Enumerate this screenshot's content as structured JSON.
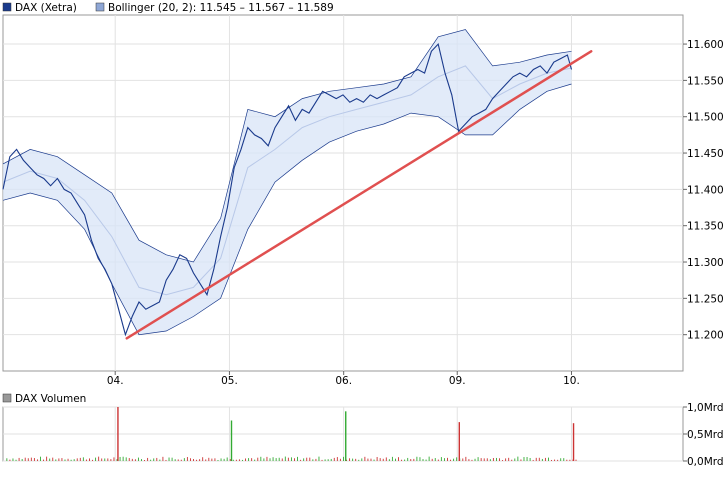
{
  "legend": {
    "main_label": "DAX (Xetra)",
    "main_color": "#1a3a8c",
    "bollinger_label": "Bollinger (20, 2): 11.545 – 11.567 – 11.589",
    "bollinger_color": "#8fa7d6",
    "volume_label": "DAX Volumen",
    "volume_color": "#999999"
  },
  "chart_data": [
    {
      "type": "line",
      "title": "",
      "x_tick_labels": [
        "04.",
        "05.",
        "06.",
        "09.",
        "10."
      ],
      "y_tick_labels": [
        "11.200",
        "11.250",
        "11.300",
        "11.350",
        "11.400",
        "11.450",
        "11.500",
        "11.550",
        "11.600"
      ],
      "y_ticks": [
        11200,
        11250,
        11300,
        11350,
        11400,
        11450,
        11500,
        11550,
        11600
      ],
      "ylim": [
        11150,
        11640
      ],
      "xlim": [
        0,
        100
      ],
      "x_day_positions": [
        16.5,
        33.3,
        50.1,
        66.8,
        83.6
      ],
      "grid": true,
      "series": [
        {
          "name": "DAX (Xetra)",
          "color": "#1a3a8c",
          "x": [
            0,
            1,
            2,
            3,
            4,
            5,
            6,
            7,
            8,
            9,
            10,
            11,
            12,
            13,
            14,
            15,
            16,
            17,
            18,
            19,
            20,
            21,
            22,
            23,
            24,
            25,
            26,
            27,
            28,
            29,
            30,
            31,
            32,
            33,
            34,
            35,
            36,
            37,
            38,
            39,
            40,
            41,
            42,
            43,
            44,
            45,
            46,
            47,
            48,
            49,
            50,
            51,
            52,
            53,
            54,
            55,
            56,
            57,
            58,
            59,
            60,
            61,
            62,
            63,
            64,
            65,
            66,
            67,
            68,
            69,
            70,
            71,
            72,
            73,
            74,
            75,
            76,
            77,
            78,
            79,
            80,
            81,
            82,
            83,
            83.6
          ],
          "values": [
            11400,
            11445,
            11455,
            11440,
            11430,
            11420,
            11415,
            11405,
            11415,
            11400,
            11395,
            11380,
            11365,
            11330,
            11305,
            11290,
            11270,
            11235,
            11200,
            11225,
            11245,
            11235,
            11240,
            11245,
            11275,
            11290,
            11310,
            11305,
            11285,
            11270,
            11255,
            11290,
            11335,
            11375,
            11430,
            11455,
            11485,
            11475,
            11470,
            11460,
            11485,
            11500,
            11515,
            11495,
            11510,
            11505,
            11520,
            11535,
            11530,
            11525,
            11530,
            11520,
            11525,
            11520,
            11530,
            11525,
            11530,
            11535,
            11540,
            11555,
            11560,
            11565,
            11560,
            11590,
            11600,
            11560,
            11530,
            11480,
            11490,
            11500,
            11505,
            11510,
            11525,
            11535,
            11545,
            11555,
            11560,
            11555,
            11565,
            11570,
            11560,
            11575,
            11580,
            11585,
            11565
          ]
        },
        {
          "name": "Bollinger (20, 2)",
          "color": "#8fa7d6",
          "x": [
            0,
            4,
            8,
            12,
            16,
            20,
            24,
            28,
            32,
            36,
            40,
            44,
            48,
            52,
            56,
            60,
            64,
            68,
            72,
            76,
            80,
            83.6
          ],
          "upper": [
            11435,
            11455,
            11445,
            11420,
            11395,
            11330,
            11310,
            11300,
            11360,
            11510,
            11500,
            11525,
            11535,
            11540,
            11545,
            11555,
            11610,
            11620,
            11570,
            11575,
            11585,
            11590
          ],
          "middle": [
            11410,
            11425,
            11415,
            11385,
            11335,
            11265,
            11255,
            11265,
            11305,
            11430,
            11455,
            11485,
            11500,
            11510,
            11520,
            11530,
            11555,
            11570,
            11525,
            11545,
            11560,
            11567
          ],
          "lower": [
            11385,
            11395,
            11385,
            11345,
            11270,
            11200,
            11205,
            11225,
            11250,
            11345,
            11410,
            11440,
            11465,
            11480,
            11490,
            11505,
            11500,
            11475,
            11475,
            11510,
            11535,
            11545
          ]
        }
      ],
      "annotations": [
        {
          "type": "trendline",
          "color": "#e05050",
          "from": [
            18.2,
            11195
          ],
          "to": [
            86.5,
            11590
          ]
        }
      ]
    },
    {
      "type": "bar",
      "title": "",
      "y_tick_labels": [
        "0,0Mrd",
        "0,5Mrd",
        "1,0Mrd"
      ],
      "y_ticks": [
        0,
        0.5,
        1.0
      ],
      "ylim": [
        0,
        1.0
      ],
      "xlim": [
        0,
        100
      ],
      "up_color": "#33aa33",
      "down_color": "#cc3333",
      "spikes": [
        {
          "x": 16.8,
          "value": 1.0,
          "dir": "down"
        },
        {
          "x": 33.5,
          "value": 0.75,
          "dir": "up"
        },
        {
          "x": 50.3,
          "value": 0.92,
          "dir": "up"
        },
        {
          "x": 67.0,
          "value": 0.72,
          "dir": "down"
        },
        {
          "x": 83.8,
          "value": 0.7,
          "dir": "down"
        }
      ],
      "base_volume": 0.06
    }
  ]
}
